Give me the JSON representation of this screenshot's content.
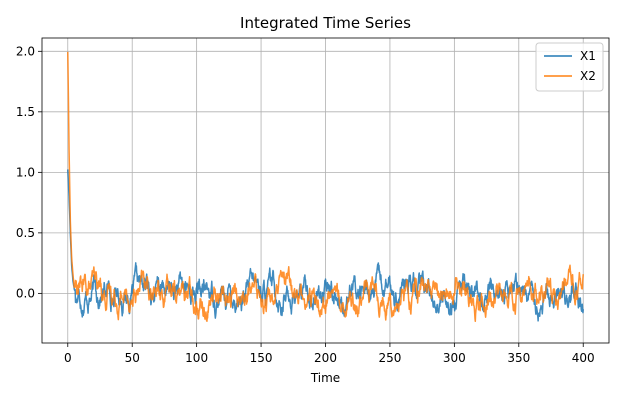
{
  "chart_data": {
    "type": "line",
    "title": "Integrated Time Series",
    "xlabel": "Time",
    "ylabel": "",
    "xlim": [
      -20,
      420
    ],
    "ylim": [
      -0.41,
      2.11
    ],
    "xticks": [
      0,
      50,
      100,
      150,
      200,
      250,
      300,
      350,
      400
    ],
    "yticks": [
      0.0,
      0.5,
      1.0,
      1.5,
      2.0
    ],
    "ytick_labels": [
      "0.0",
      "0.5",
      "1.0",
      "1.5",
      "2.0"
    ],
    "grid": true,
    "legend_position": "top-right",
    "series": [
      {
        "name": "X1",
        "color": "#1f77b4",
        "x": [
          0,
          1,
          2,
          3,
          4,
          5,
          7,
          10,
          15,
          20,
          25,
          30,
          40,
          50,
          60,
          70,
          80,
          90,
          100,
          110,
          120,
          130,
          140,
          150,
          160,
          170,
          180,
          190,
          200,
          210,
          220,
          230,
          240,
          250,
          260,
          270,
          280,
          290,
          300,
          310,
          320,
          330,
          340,
          350,
          360,
          370,
          380,
          390,
          400
        ],
        "y": [
          1.03,
          0.8,
          0.5,
          0.25,
          0.12,
          0.05,
          0.03,
          0.02,
          0.02,
          0.02,
          0.01,
          0.02,
          0.01,
          0.0,
          0.01,
          0.02,
          0.0,
          0.0,
          0.01,
          0.0,
          -0.01,
          0.0,
          0.0,
          0.01,
          0.0,
          0.0,
          0.01,
          0.0,
          0.0,
          0.0,
          0.01,
          0.0,
          0.0,
          0.0,
          0.01,
          0.0,
          0.0,
          0.0,
          0.0,
          0.0,
          0.0,
          0.0,
          0.0,
          0.0,
          0.0,
          0.0,
          0.0,
          0.0,
          0.02
        ],
        "range": [
          -0.25,
          0.27
        ]
      },
      {
        "name": "X2",
        "color": "#ff7f0e",
        "x": [
          0,
          1,
          2,
          3,
          4,
          5,
          7,
          10,
          15,
          20,
          25,
          30,
          40,
          50,
          60,
          70,
          80,
          90,
          100,
          110,
          120,
          130,
          140,
          150,
          160,
          170,
          180,
          190,
          200,
          210,
          220,
          230,
          240,
          250,
          260,
          270,
          280,
          290,
          300,
          310,
          320,
          330,
          340,
          350,
          360,
          370,
          380,
          390,
          400
        ],
        "y": [
          2.0,
          1.2,
          0.6,
          0.3,
          0.15,
          0.06,
          0.03,
          0.02,
          0.02,
          0.02,
          0.01,
          0.02,
          0.01,
          0.0,
          0.01,
          0.02,
          0.0,
          0.0,
          0.01,
          0.0,
          -0.01,
          0.0,
          0.0,
          0.01,
          0.0,
          0.0,
          0.01,
          0.0,
          0.0,
          0.0,
          0.01,
          0.0,
          0.0,
          0.0,
          0.01,
          0.0,
          0.0,
          0.0,
          0.0,
          0.0,
          0.0,
          0.0,
          0.0,
          0.0,
          0.0,
          0.0,
          0.0,
          0.0,
          0.02
        ],
        "range": [
          -0.3,
          0.29
        ]
      }
    ]
  }
}
